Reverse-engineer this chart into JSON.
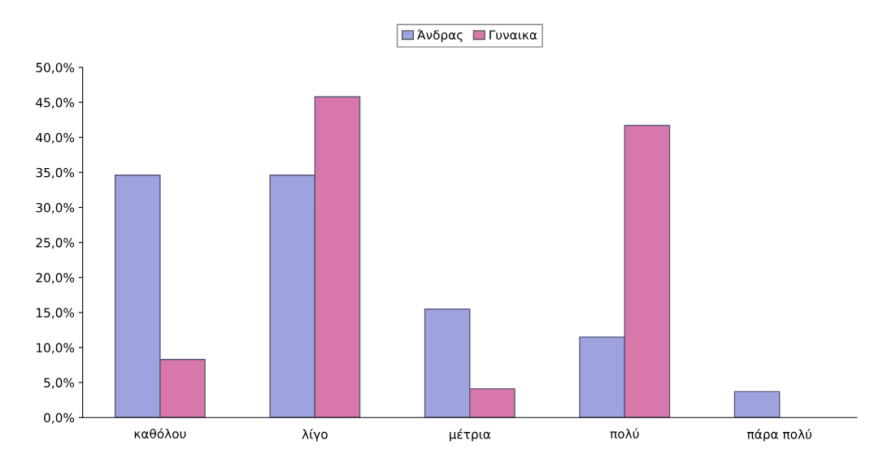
{
  "chart_data": {
    "type": "bar",
    "categories": [
      "καθόλου",
      "λίγο",
      "μέτρια",
      "πολύ",
      "πάρα πολύ"
    ],
    "series": [
      {
        "name": "Άνδρας",
        "color": "#9ea3e0",
        "values": [
          34.6,
          34.6,
          15.5,
          11.5,
          3.7
        ]
      },
      {
        "name": "Γυναικα",
        "color": "#d877aa",
        "values": [
          8.3,
          45.8,
          4.1,
          41.7,
          null
        ]
      }
    ],
    "ylim": [
      0,
      50
    ],
    "yticks": [
      {
        "value": 0,
        "label": "0,0%"
      },
      {
        "value": 5,
        "label": "5,0%"
      },
      {
        "value": 10,
        "label": "10,0%"
      },
      {
        "value": 15,
        "label": "15,0%"
      },
      {
        "value": 20,
        "label": "20,0%"
      },
      {
        "value": 25,
        "label": "25,0%"
      },
      {
        "value": 30,
        "label": "30,0%"
      },
      {
        "value": 35,
        "label": "35,0%"
      },
      {
        "value": 40,
        "label": "40,0%"
      },
      {
        "value": 45,
        "label": "45,0%"
      },
      {
        "value": 50,
        "label": "50,0%"
      }
    ],
    "grid": false,
    "legend": "top"
  }
}
